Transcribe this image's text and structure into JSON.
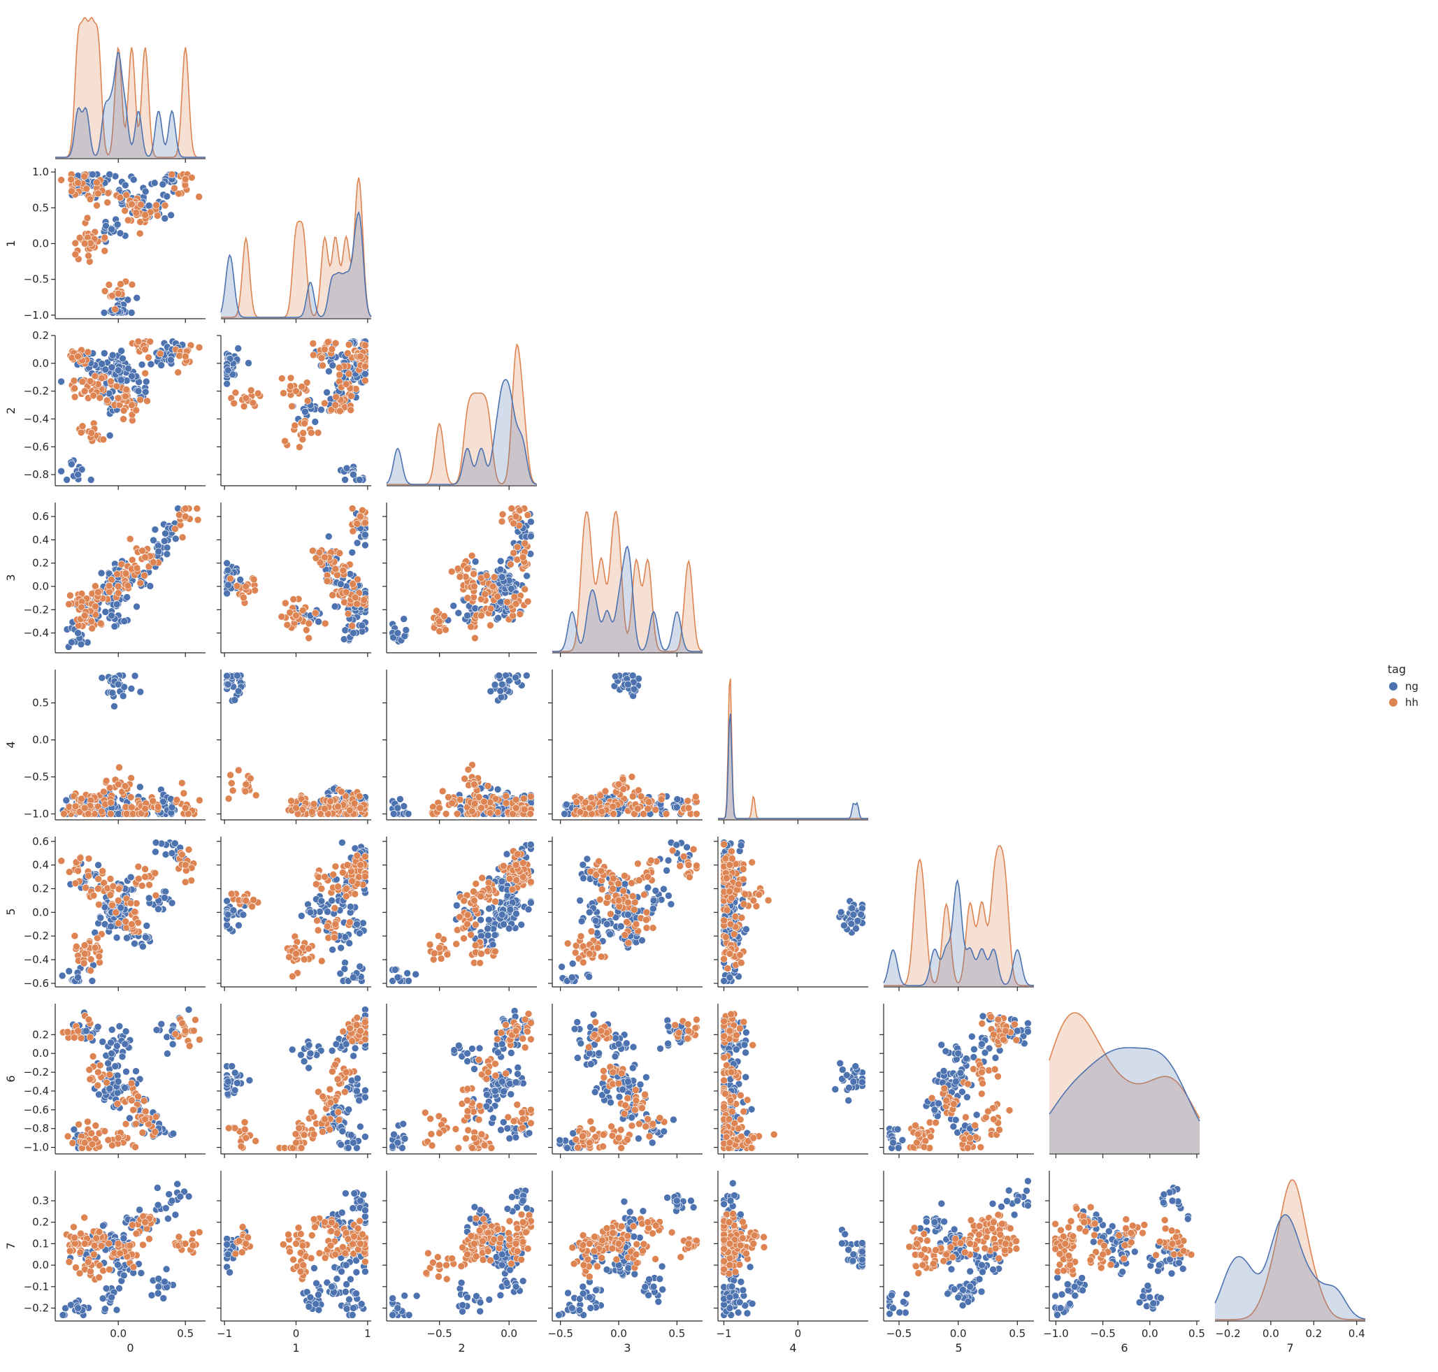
{
  "chart_data": {
    "type": "scatter",
    "subtype": "pairplot-lower-corner",
    "title": "",
    "variables": [
      "0",
      "1",
      "2",
      "3",
      "4",
      "5",
      "6",
      "7"
    ],
    "diagonal": "kde",
    "ranges": {
      "0": [
        -0.47,
        0.65
      ],
      "1": [
        -1.05,
        1.05
      ],
      "2": [
        -0.88,
        0.2
      ],
      "3": [
        -0.57,
        0.72
      ],
      "4": [
        -1.08,
        0.95
      ],
      "5": [
        -0.63,
        0.64
      ],
      "6": [
        -1.07,
        0.53
      ],
      "7": [
        -0.26,
        0.44
      ]
    },
    "ticks": {
      "0": [
        0.0,
        0.5
      ],
      "1": [
        -1,
        0,
        1
      ],
      "2": [
        -0.5,
        0.0
      ],
      "3": [
        -0.5,
        0.0,
        0.5
      ],
      "4": [
        -1,
        0
      ],
      "5": [
        -0.5,
        0.0,
        0.5
      ]
    },
    "tick_labels": {
      "0": [
        "0.0",
        "0.5"
      ],
      "1": [
        "−1",
        "0",
        "1"
      ],
      "2": [
        "−0.5",
        "0.0"
      ],
      "3": [
        "−0.5",
        "0.0",
        "0.5"
      ],
      "4": [
        "−1",
        "0"
      ],
      "5": [
        "−0.5",
        "0.0",
        "0.5"
      ]
    },
    "y_ticks": {
      "1": [
        1.0,
        0.5,
        0.0,
        -0.5,
        -1.0
      ],
      "2": [
        0.2,
        0.0,
        -0.2,
        -0.4,
        -0.6,
        -0.8
      ],
      "3": [
        0.6,
        0.4,
        0.2,
        0.0,
        -0.2,
        -0.4
      ],
      "4": [
        0.5,
        0.0,
        -0.5,
        -1.0
      ],
      "5": [
        0.6,
        0.4,
        0.2,
        0.0,
        -0.2,
        -0.4,
        -0.6
      ],
      "6": [
        0.2,
        0.0,
        -0.2,
        -0.4,
        -0.6,
        -0.8,
        -1.0
      ],
      "7": [
        0.3,
        0.2,
        0.1,
        0.0,
        -0.1,
        -0.2
      ]
    },
    "y_tick_labels": {
      "1": [
        "1.0",
        "0.5",
        "0.0",
        "−0.5",
        "−1.0"
      ],
      "2": [
        "0.2",
        "0.0",
        "−0.2",
        "−0.4",
        "−0.6",
        "−0.8"
      ],
      "3": [
        "0.6",
        "0.4",
        "0.2",
        "0.0",
        "−0.2",
        "−0.4"
      ],
      "4": [
        "0.5",
        "0.0",
        "−0.5",
        "−1.0"
      ],
      "5": [
        "0.6",
        "0.4",
        "0.2",
        "0.0",
        "−0.2",
        "−0.4",
        "−0.6"
      ],
      "6": [
        "0.2",
        "0.0",
        "−0.2",
        "−0.4",
        "−0.6",
        "−0.8",
        "−1.0"
      ],
      "7": [
        "0.3",
        "0.2",
        "0.1",
        "0.0",
        "−0.1",
        "−0.2"
      ]
    },
    "bottom_ticks": {
      "6": [
        -1.0,
        -0.5,
        0.0,
        0.5
      ],
      "7": [
        -0.2,
        0.0,
        0.2,
        0.4
      ]
    },
    "bottom_tick_labels": {
      "6": [
        "−1.0",
        "−0.5",
        "0.0",
        "0.5"
      ],
      "7": [
        "−0.2",
        "0.0",
        "0.2",
        "0.4"
      ]
    },
    "legend": {
      "title": "tag",
      "placement": "right-center",
      "entries": [
        {
          "name": "ng",
          "color": "#4c72b0"
        },
        {
          "name": "hh",
          "color": "#dd8452"
        }
      ]
    },
    "series": [
      {
        "name": "ng",
        "color": "#4c72b0",
        "points": [
          {
            "v0": -0.24,
            "v1": 0.9,
            "v2": 0.0,
            "v3": -0.2,
            "v4": -0.92,
            "v5": 0.3,
            "v6": 0.24,
            "v7": 0.05
          },
          {
            "v0": -0.1,
            "v1": 0.85,
            "v2": -0.1,
            "v3": -0.1,
            "v4": -0.9,
            "v5": -0.1,
            "v6": -0.4,
            "v7": 0.12
          },
          {
            "v0": 0.05,
            "v1": 0.7,
            "v2": -0.05,
            "v3": 0.0,
            "v4": -0.93,
            "v5": 0.2,
            "v6": 0.1,
            "v7": 0.0
          },
          {
            "v0": 0.15,
            "v1": 0.6,
            "v2": -0.2,
            "v3": 0.1,
            "v4": -0.91,
            "v5": -0.2,
            "v6": -0.6,
            "v7": 0.2
          },
          {
            "v0": 0.3,
            "v1": 0.5,
            "v2": 0.05,
            "v3": 0.3,
            "v4": -0.92,
            "v5": 0.1,
            "v6": -0.8,
            "v7": -0.1
          },
          {
            "v0": 0.0,
            "v1": -0.9,
            "v2": 0.0,
            "v3": 0.05,
            "v4": 0.8,
            "v5": 0.0,
            "v6": -0.3,
            "v7": 0.1
          },
          {
            "v0": 0.0,
            "v1": -0.95,
            "v2": -0.05,
            "v3": 0.08,
            "v4": 0.75,
            "v5": -0.02,
            "v6": -0.3,
            "v7": 0.05
          },
          {
            "v0": -0.3,
            "v1": 0.8,
            "v2": -0.8,
            "v3": -0.4,
            "v4": -0.92,
            "v5": -0.55,
            "v6": -0.95,
            "v7": -0.2
          },
          {
            "v0": 0.4,
            "v1": 0.9,
            "v2": 0.1,
            "v3": 0.5,
            "v4": -0.91,
            "v5": 0.5,
            "v6": 0.24,
            "v7": 0.3
          },
          {
            "v0": -0.05,
            "v1": 0.2,
            "v2": -0.3,
            "v3": -0.25,
            "v4": -0.92,
            "v5": 0.0,
            "v6": 0.0,
            "v7": -0.15
          }
        ]
      },
      {
        "name": "hh",
        "color": "#dd8452",
        "points": [
          {
            "v0": -0.3,
            "v1": 0.85,
            "v2": 0.05,
            "v3": -0.15,
            "v4": -0.92,
            "v5": 0.35,
            "v6": 0.24,
            "v7": 0.1
          },
          {
            "v0": -0.15,
            "v1": 0.7,
            "v2": -0.15,
            "v3": -0.05,
            "v4": -0.9,
            "v5": 0.2,
            "v6": -0.2,
            "v7": 0.15
          },
          {
            "v0": 0.1,
            "v1": 0.55,
            "v2": -0.3,
            "v3": 0.15,
            "v4": -0.91,
            "v5": -0.1,
            "v6": -0.5,
            "v7": 0.05
          },
          {
            "v0": 0.2,
            "v1": 0.4,
            "v2": 0.1,
            "v3": 0.25,
            "v4": -0.93,
            "v5": 0.3,
            "v6": -0.7,
            "v7": 0.2
          },
          {
            "v0": -0.2,
            "v1": 0.1,
            "v2": -0.5,
            "v3": -0.3,
            "v4": -0.92,
            "v5": -0.3,
            "v6": -0.85,
            "v7": 0.0
          },
          {
            "v0": 0.5,
            "v1": 0.9,
            "v2": 0.05,
            "v3": 0.6,
            "v4": -0.92,
            "v5": 0.4,
            "v6": 0.24,
            "v7": 0.1
          },
          {
            "v0": -0.25,
            "v1": 0.0,
            "v2": -0.2,
            "v3": -0.25,
            "v4": -0.92,
            "v5": -0.35,
            "v6": -0.95,
            "v7": 0.1
          },
          {
            "v0": 0.0,
            "v1": -0.7,
            "v2": -0.25,
            "v3": 0.0,
            "v4": -0.6,
            "v5": 0.1,
            "v6": -0.9,
            "v7": 0.1
          }
        ]
      }
    ]
  }
}
